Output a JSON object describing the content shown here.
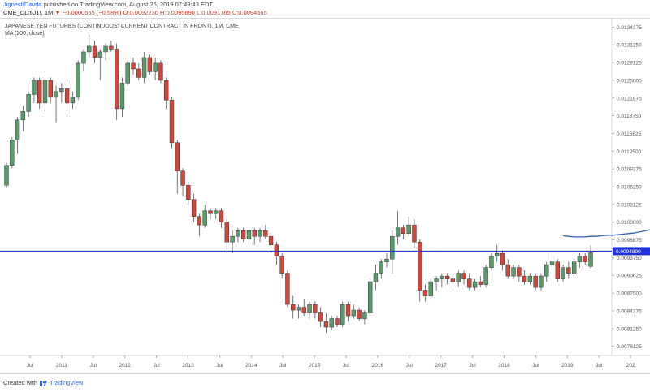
{
  "header": {
    "author": "JigneshDavda",
    "published": "published on TradingView.com, August 26, 2019 07:49:43 EDT",
    "symbol": "CME_DL:6J1!, 1M",
    "change": "▼ −0.0000555 (−0.58%)",
    "ohlc": "O:0.0092230 H:0.0095890 L:0.0091765 C:0.0094565"
  },
  "legend": {
    "title": "JAPANESE YEN FUTURES (CONTINUOUS: CURRENT CONTRACT IN FRONT), 1M, CME",
    "indicator": "MA (200, close)"
  },
  "footer": {
    "created_with": "Created with",
    "brand": "TradingView"
  },
  "colors": {
    "up": "#5b9a6b",
    "down": "#d2453a",
    "hline": "#2433d4",
    "ma": "#2f5fb4",
    "price_tag": "#1f33d9"
  },
  "chart_data": {
    "type": "candlestick",
    "title": "JAPANESE YEN FUTURES (CONTINUOUS: CURRENT CONTRACT IN FRONT), 1M, CME",
    "ylim": [
      0.00765,
      0.0136
    ],
    "y_ticks": [
      "0.0134375",
      "0.0131250",
      "0.0128125",
      "0.0125000",
      "0.0121875",
      "0.0118750",
      "0.0115625",
      "0.0112500",
      "0.0109375",
      "0.0106250",
      "0.0103125",
      "0.0100000",
      "0.0096875",
      "0.0093750",
      "0.0090625",
      "0.0087500",
      "0.0084375",
      "0.0081250",
      "0.0078125"
    ],
    "x_ticks": [
      "Jul",
      "2011",
      "Jul",
      "2012",
      "Jul",
      "2013",
      "Jul",
      "2014",
      "Jul",
      "2015",
      "Jul",
      "2016",
      "Jul",
      "2017",
      "Jul",
      "2018",
      "Jul",
      "2019",
      "Jul",
      "202"
    ],
    "horizontal_line": 0.009489,
    "price_label": "0.0094890",
    "ma_label": "MA (200, close)",
    "ma": {
      "start_index": 101,
      "values": [
        0.00976,
        0.00975,
        0.00974,
        0.00974,
        0.00974,
        0.00975,
        0.00975,
        0.00976,
        0.00977,
        0.00977,
        0.00978,
        0.00979,
        0.0098,
        0.00981,
        0.00983,
        0.00985,
        0.00987
      ]
    },
    "candles": [
      [
        0.01065,
        0.01105,
        0.0106,
        0.011
      ],
      [
        0.011,
        0.0115,
        0.01095,
        0.01145
      ],
      [
        0.01145,
        0.01185,
        0.0112,
        0.0118
      ],
      [
        0.0118,
        0.01205,
        0.0116,
        0.01195
      ],
      [
        0.01195,
        0.0123,
        0.01185,
        0.01225
      ],
      [
        0.01225,
        0.01255,
        0.0121,
        0.0125
      ],
      [
        0.0125,
        0.01255,
        0.012,
        0.0121
      ],
      [
        0.0121,
        0.0126,
        0.01195,
        0.0125
      ],
      [
        0.0125,
        0.01255,
        0.0121,
        0.0122
      ],
      [
        0.0122,
        0.0124,
        0.01175,
        0.0123
      ],
      [
        0.0123,
        0.01245,
        0.0121,
        0.01235
      ],
      [
        0.01235,
        0.01245,
        0.01195,
        0.0121
      ],
      [
        0.0121,
        0.0123,
        0.012,
        0.0122
      ],
      [
        0.0122,
        0.01285,
        0.01215,
        0.0128
      ],
      [
        0.0128,
        0.01305,
        0.01265,
        0.013
      ],
      [
        0.013,
        0.0133,
        0.0129,
        0.0131
      ],
      [
        0.0131,
        0.0132,
        0.0128,
        0.0129
      ],
      [
        0.0129,
        0.01305,
        0.0125,
        0.013
      ],
      [
        0.013,
        0.01315,
        0.01285,
        0.0131
      ],
      [
        0.0131,
        0.0132,
        0.013,
        0.01305
      ],
      [
        0.01305,
        0.01315,
        0.0118,
        0.012
      ],
      [
        0.012,
        0.01255,
        0.01185,
        0.01245
      ],
      [
        0.01245,
        0.01285,
        0.0124,
        0.0128
      ],
      [
        0.0128,
        0.0129,
        0.0126,
        0.0127
      ],
      [
        0.0127,
        0.0128,
        0.0125,
        0.01255
      ],
      [
        0.01255,
        0.013,
        0.01245,
        0.0129
      ],
      [
        0.0129,
        0.01295,
        0.0126,
        0.01265
      ],
      [
        0.01265,
        0.0129,
        0.0125,
        0.0128
      ],
      [
        0.0128,
        0.01285,
        0.01245,
        0.0125
      ],
      [
        0.0125,
        0.01255,
        0.012,
        0.01215
      ],
      [
        0.01215,
        0.0122,
        0.0113,
        0.0114
      ],
      [
        0.0114,
        0.01145,
        0.0105,
        0.0109
      ],
      [
        0.0109,
        0.01095,
        0.01045,
        0.01065
      ],
      [
        0.01065,
        0.0107,
        0.0103,
        0.0104
      ],
      [
        0.0104,
        0.0105,
        0.01,
        0.0101
      ],
      [
        0.0101,
        0.01015,
        0.00975,
        0.00995
      ],
      [
        0.00995,
        0.0103,
        0.0099,
        0.0102
      ],
      [
        0.0102,
        0.01025,
        0.01005,
        0.01015
      ],
      [
        0.01015,
        0.01025,
        0.01005,
        0.0102
      ],
      [
        0.0102,
        0.01025,
        0.0099,
        0.01
      ],
      [
        0.01,
        0.01005,
        0.00945,
        0.00965
      ],
      [
        0.00965,
        0.00985,
        0.00945,
        0.00975
      ],
      [
        0.00975,
        0.0099,
        0.00965,
        0.00985
      ],
      [
        0.00985,
        0.0099,
        0.00965,
        0.0097
      ],
      [
        0.0097,
        0.0099,
        0.0096,
        0.00985
      ],
      [
        0.00985,
        0.0099,
        0.0096,
        0.00975
      ],
      [
        0.00975,
        0.0099,
        0.00965,
        0.00985
      ],
      [
        0.00985,
        0.00995,
        0.0097,
        0.00975
      ],
      [
        0.00975,
        0.0098,
        0.00955,
        0.0096
      ],
      [
        0.0096,
        0.00965,
        0.00925,
        0.0094
      ],
      [
        0.0094,
        0.00945,
        0.009,
        0.0091
      ],
      [
        0.0091,
        0.00915,
        0.0085,
        0.00855
      ],
      [
        0.00855,
        0.0087,
        0.0083,
        0.00845
      ],
      [
        0.00845,
        0.00855,
        0.0083,
        0.0085
      ],
      [
        0.0085,
        0.00865,
        0.00835,
        0.0084
      ],
      [
        0.0084,
        0.0086,
        0.0083,
        0.00855
      ],
      [
        0.00855,
        0.0086,
        0.0083,
        0.0084
      ],
      [
        0.0084,
        0.0085,
        0.00815,
        0.00825
      ],
      [
        0.00825,
        0.0084,
        0.00805,
        0.00815
      ],
      [
        0.00815,
        0.00835,
        0.0081,
        0.0083
      ],
      [
        0.0083,
        0.00835,
        0.00815,
        0.0082
      ],
      [
        0.0082,
        0.0086,
        0.00815,
        0.00855
      ],
      [
        0.00855,
        0.0086,
        0.00825,
        0.00835
      ],
      [
        0.00835,
        0.00855,
        0.0083,
        0.00845
      ],
      [
        0.00845,
        0.0085,
        0.00825,
        0.0083
      ],
      [
        0.0083,
        0.00845,
        0.0082,
        0.0084
      ],
      [
        0.0084,
        0.009,
        0.00835,
        0.00895
      ],
      [
        0.00895,
        0.00925,
        0.0088,
        0.0091
      ],
      [
        0.0091,
        0.00935,
        0.009,
        0.0093
      ],
      [
        0.0093,
        0.00945,
        0.0092,
        0.00935
      ],
      [
        0.00935,
        0.00985,
        0.0091,
        0.00975
      ],
      [
        0.00975,
        0.0102,
        0.0096,
        0.0099
      ],
      [
        0.0099,
        0.00995,
        0.0097,
        0.0098
      ],
      [
        0.0098,
        0.0101,
        0.00975,
        0.00995
      ],
      [
        0.00995,
        0.01005,
        0.00955,
        0.00965
      ],
      [
        0.00965,
        0.0097,
        0.0086,
        0.0088
      ],
      [
        0.0088,
        0.0089,
        0.0086,
        0.0087
      ],
      [
        0.0087,
        0.009,
        0.00865,
        0.00895
      ],
      [
        0.00895,
        0.00905,
        0.0088,
        0.009
      ],
      [
        0.009,
        0.0091,
        0.00885,
        0.00905
      ],
      [
        0.00905,
        0.0091,
        0.0089,
        0.009
      ],
      [
        0.009,
        0.0091,
        0.00885,
        0.00895
      ],
      [
        0.00895,
        0.00915,
        0.00885,
        0.0091
      ],
      [
        0.0091,
        0.00915,
        0.0089,
        0.009
      ],
      [
        0.009,
        0.0091,
        0.0088,
        0.00885
      ],
      [
        0.00885,
        0.009,
        0.0088,
        0.00895
      ],
      [
        0.00895,
        0.00905,
        0.00885,
        0.0089
      ],
      [
        0.0089,
        0.00925,
        0.00885,
        0.0092
      ],
      [
        0.0092,
        0.00945,
        0.00915,
        0.0094
      ],
      [
        0.0094,
        0.0096,
        0.0093,
        0.00945
      ],
      [
        0.00945,
        0.0095,
        0.00915,
        0.00925
      ],
      [
        0.00925,
        0.00935,
        0.009,
        0.00905
      ],
      [
        0.00905,
        0.00925,
        0.009,
        0.0092
      ],
      [
        0.0092,
        0.00925,
        0.00895,
        0.00905
      ],
      [
        0.00905,
        0.00915,
        0.0089,
        0.00895
      ],
      [
        0.00895,
        0.0091,
        0.0089,
        0.00905
      ],
      [
        0.00905,
        0.0091,
        0.0088,
        0.00885
      ],
      [
        0.00885,
        0.0091,
        0.0088,
        0.00905
      ],
      [
        0.00905,
        0.0093,
        0.00895,
        0.00925
      ],
      [
        0.00925,
        0.00945,
        0.00915,
        0.0093
      ],
      [
        0.0093,
        0.00935,
        0.00895,
        0.009
      ],
      [
        0.009,
        0.00925,
        0.00895,
        0.0092
      ],
      [
        0.0092,
        0.0093,
        0.009,
        0.0091
      ],
      [
        0.0091,
        0.00935,
        0.00905,
        0.0093
      ],
      [
        0.0093,
        0.00945,
        0.0092,
        0.0094
      ],
      [
        0.0094,
        0.00945,
        0.00925,
        0.0093
      ],
      [
        0.00922,
        0.00959,
        0.00918,
        0.00946
      ]
    ]
  }
}
